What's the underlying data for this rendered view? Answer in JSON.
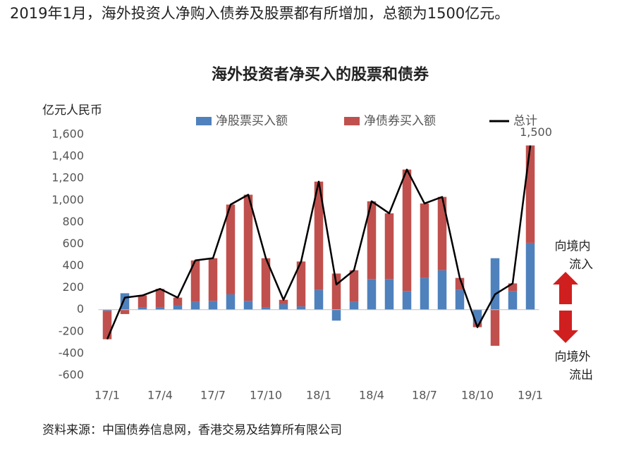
{
  "header": "2019年1月，海外投资人净购入债券及股票都有所增加，总额为1500亿元。",
  "source": "资料来源：中国债券信息网，香港交易及结算所有限公司",
  "chart_data": {
    "type": "bar",
    "stacked": true,
    "title": "海外投资者净买入的股票和债券",
    "y_label": "亿元人民币",
    "categories": [
      "17/1",
      null,
      null,
      "17/4",
      null,
      null,
      "17/7",
      null,
      null,
      "17/10",
      null,
      null,
      "18/1",
      null,
      null,
      "18/4",
      null,
      null,
      "18/7",
      null,
      null,
      "18/10",
      null,
      null,
      "19/1"
    ],
    "series": [
      {
        "name": "净股票买入额",
        "type": "bar",
        "color": "#4f81bd",
        "values": [
          -10,
          150,
          20,
          20,
          40,
          70,
          80,
          140,
          80,
          20,
          50,
          30,
          180,
          -100,
          70,
          280,
          280,
          170,
          290,
          360,
          180,
          -120,
          470,
          170,
          610
        ]
      },
      {
        "name": "净债券买入额",
        "type": "bar",
        "color": "#c0504d",
        "values": [
          -260,
          -40,
          110,
          170,
          70,
          380,
          390,
          820,
          970,
          450,
          40,
          410,
          990,
          330,
          290,
          710,
          600,
          1110,
          680,
          670,
          110,
          -40,
          -330,
          70,
          890
        ]
      },
      {
        "name": "总计",
        "type": "line",
        "color": "#000000",
        "values": [
          -270,
          110,
          130,
          190,
          110,
          450,
          470,
          960,
          1050,
          470,
          90,
          440,
          1170,
          230,
          360,
          990,
          880,
          1280,
          970,
          1030,
          290,
          -160,
          140,
          240,
          1500
        ],
        "value_labels": [
          null,
          null,
          null,
          null,
          null,
          null,
          null,
          null,
          null,
          null,
          null,
          null,
          null,
          null,
          null,
          null,
          null,
          null,
          null,
          null,
          null,
          null,
          null,
          null,
          "1,500"
        ]
      }
    ],
    "ylim": [
      -600,
      1600
    ],
    "yticks": [
      -600,
      -400,
      -200,
      0,
      200,
      400,
      600,
      800,
      {
        "value": 1000,
        "label": "1,000"
      },
      {
        "value": 1200,
        "label": "1,200"
      },
      {
        "value": 1400,
        "label": "1,400"
      },
      {
        "value": 1600,
        "label": "1,600"
      }
    ],
    "grid": false,
    "annotations": [
      "向境内",
      "流入",
      "向境外",
      "流出"
    ]
  }
}
